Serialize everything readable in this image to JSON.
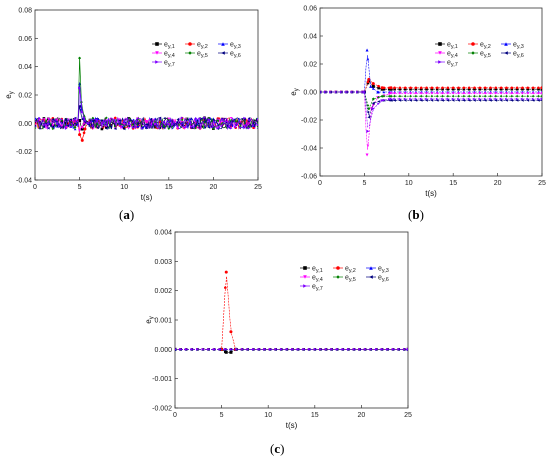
{
  "panels": [
    {
      "label_open": "(",
      "label_letter": "a",
      "label_close": ")"
    },
    {
      "label_open": "(",
      "label_letter": "b",
      "label_close": ")"
    },
    {
      "label_open": "(",
      "label_letter": "c",
      "label_close": ")"
    }
  ],
  "chart_data": [
    {
      "type": "line",
      "panel": "a",
      "xlabel": "t(s)",
      "ylabel": "e_y",
      "xlim": [
        0,
        25
      ],
      "ylim": [
        -0.04,
        0.08
      ],
      "xticks": [
        0,
        5,
        10,
        15,
        20,
        25
      ],
      "yticks": [
        -0.04,
        -0.02,
        0.0,
        0.02,
        0.04,
        0.06,
        0.08
      ],
      "ytick_labels": [
        "-0.04",
        "-0.02",
        "0.00",
        "0.02",
        "0.04",
        "0.06",
        "0.08"
      ],
      "noise_amplitude": 0.004,
      "series": [
        {
          "name": "e_y,1",
          "color": "#000000",
          "marker": "square",
          "x": [
            5.0,
            5.3,
            5.6,
            6.0
          ],
          "y": [
            0.002,
            -0.004,
            0.001,
            0.0
          ]
        },
        {
          "name": "e_y,2",
          "color": "#ff0000",
          "marker": "circle",
          "x": [
            5.0,
            5.3,
            5.6,
            6.0
          ],
          "y": [
            -0.008,
            -0.012,
            -0.004,
            0.0
          ]
        },
        {
          "name": "e_y,3",
          "color": "#0000ff",
          "marker": "triangle-up",
          "x": [
            5.0,
            5.2,
            5.5,
            6.0
          ],
          "y": [
            0.028,
            0.01,
            0.004,
            0.0
          ]
        },
        {
          "name": "e_y,4",
          "color": "#ff00ff",
          "marker": "triangle-down",
          "x": [
            5.0,
            5.3,
            5.6,
            6.0
          ],
          "y": [
            -0.005,
            -0.003,
            0.001,
            0.0
          ]
        },
        {
          "name": "e_y,5",
          "color": "#008000",
          "marker": "diamond",
          "x": [
            5.0,
            5.2,
            5.5,
            6.0
          ],
          "y": [
            0.046,
            0.015,
            0.005,
            0.0
          ]
        },
        {
          "name": "e_y,6",
          "color": "#000080",
          "marker": "triangle-left",
          "x": [
            5.0,
            5.3,
            5.6,
            6.0
          ],
          "y": [
            0.012,
            0.003,
            0.001,
            0.0
          ]
        },
        {
          "name": "e_y,7",
          "color": "#8000ff",
          "marker": "triangle-right",
          "x": [
            5.0,
            5.3,
            5.6,
            6.0
          ],
          "y": [
            0.025,
            0.008,
            0.002,
            0.0
          ]
        }
      ]
    },
    {
      "type": "line",
      "panel": "b",
      "xlabel": "t(s)",
      "ylabel": "e_y",
      "xlim": [
        0,
        25
      ],
      "ylim": [
        -0.06,
        0.06
      ],
      "xticks": [
        0,
        5,
        10,
        15,
        20,
        25
      ],
      "yticks": [
        -0.06,
        -0.04,
        -0.02,
        0.0,
        0.02,
        0.04,
        0.06
      ],
      "ytick_labels": [
        "-0.06",
        "-0.04",
        "-0.02",
        "0.00",
        "0.02",
        "0.04",
        "0.06"
      ],
      "series": [
        {
          "name": "e_y,1",
          "color": "#000000",
          "marker": "square",
          "x": [
            0,
            5.0,
            5.5,
            6.0,
            7.0,
            8.0,
            25
          ],
          "y": [
            0.0,
            0.0,
            0.008,
            0.004,
            0.002,
            0.002,
            0.002
          ]
        },
        {
          "name": "e_y,2",
          "color": "#ff0000",
          "marker": "circle",
          "x": [
            0,
            5.0,
            5.5,
            6.0,
            7.0,
            8.0,
            25
          ],
          "y": [
            0.0,
            0.0,
            0.009,
            0.006,
            0.003,
            0.003,
            0.003
          ]
        },
        {
          "name": "e_y,3",
          "color": "#0000ff",
          "marker": "triangle-up",
          "x": [
            0,
            5.0,
            5.3,
            5.7,
            6.5,
            8.0,
            25
          ],
          "y": [
            0.0,
            0.0,
            0.03,
            0.004,
            0.0,
            0.0,
            0.0
          ]
        },
        {
          "name": "e_y,4",
          "color": "#ff00ff",
          "marker": "triangle-down",
          "x": [
            0,
            5.0,
            5.3,
            5.8,
            6.5,
            8.0,
            25
          ],
          "y": [
            0.0,
            0.0,
            -0.045,
            -0.012,
            -0.004,
            -0.001,
            -0.001
          ]
        },
        {
          "name": "e_y,5",
          "color": "#008000",
          "marker": "diamond",
          "x": [
            0,
            5.0,
            5.5,
            6.0,
            7.0,
            8.0,
            25
          ],
          "y": [
            0.0,
            0.0,
            -0.012,
            -0.005,
            -0.003,
            -0.003,
            -0.003
          ]
        },
        {
          "name": "e_y,6",
          "color": "#000080",
          "marker": "triangle-left",
          "x": [
            0,
            5.0,
            5.5,
            6.0,
            7.0,
            8.0,
            25
          ],
          "y": [
            0.0,
            0.0,
            -0.018,
            -0.008,
            -0.006,
            -0.006,
            -0.006
          ]
        },
        {
          "name": "e_y,7",
          "color": "#8000ff",
          "marker": "triangle-right",
          "x": [
            0,
            5.0,
            5.4,
            6.0,
            7.0,
            8.0,
            25
          ],
          "y": [
            0.0,
            0.0,
            -0.028,
            -0.012,
            -0.006,
            -0.005,
            -0.005
          ]
        }
      ]
    },
    {
      "type": "line",
      "panel": "c",
      "xlabel": "t(s)",
      "ylabel": "e_y",
      "xlim": [
        0,
        25
      ],
      "ylim": [
        -0.002,
        0.004
      ],
      "xticks": [
        0,
        5,
        10,
        15,
        20,
        25
      ],
      "yticks": [
        -0.002,
        -0.001,
        0.0,
        0.001,
        0.002,
        0.003,
        0.004
      ],
      "ytick_labels": [
        "-0.002",
        "-0.001",
        "0.000",
        "0.001",
        "0.002",
        "0.003",
        "0.004"
      ],
      "series": [
        {
          "name": "e_y,1",
          "color": "#000000",
          "marker": "square",
          "x": [
            0,
            5.0,
            5.5,
            6.0,
            6.5,
            25
          ],
          "y": [
            0.0,
            0.0,
            -0.0001,
            -0.0001,
            0.0,
            0.0
          ]
        },
        {
          "name": "e_y,2",
          "color": "#ff0000",
          "marker": "circle",
          "x": [
            0,
            5.0,
            5.5,
            6.0,
            6.5,
            25
          ],
          "y": [
            0.0,
            0.0,
            0.00263,
            0.0006,
            0.0,
            0.0
          ]
        },
        {
          "name": "e_y,3",
          "color": "#0000ff",
          "marker": "triangle-up",
          "x": [
            0,
            25
          ],
          "y": [
            0.0,
            0.0
          ]
        },
        {
          "name": "e_y,4",
          "color": "#ff00ff",
          "marker": "triangle-down",
          "x": [
            0,
            25
          ],
          "y": [
            0.0,
            0.0
          ]
        },
        {
          "name": "e_y,5",
          "color": "#008000",
          "marker": "diamond",
          "x": [
            0,
            25
          ],
          "y": [
            0.0,
            0.0
          ]
        },
        {
          "name": "e_y,6",
          "color": "#000080",
          "marker": "triangle-left",
          "x": [
            0,
            25
          ],
          "y": [
            0.0,
            0.0
          ]
        },
        {
          "name": "e_y,7",
          "color": "#8000ff",
          "marker": "triangle-right",
          "x": [
            0,
            25
          ],
          "y": [
            0.0,
            0.0
          ]
        }
      ]
    }
  ]
}
